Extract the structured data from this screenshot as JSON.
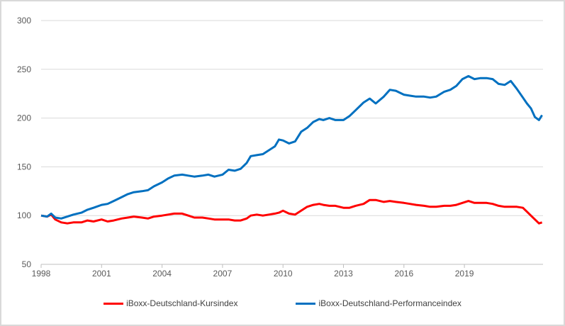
{
  "chart_data": {
    "type": "line",
    "title": "",
    "xlabel": "",
    "ylabel": "",
    "xlim": [
      1998,
      2022.9
    ],
    "ylim": [
      50,
      300
    ],
    "yticks": [
      50,
      100,
      150,
      200,
      250,
      300
    ],
    "xticks": [
      "1998",
      "2001",
      "2004",
      "2007",
      "2010",
      "2013",
      "2016",
      "2019"
    ],
    "grid": true,
    "legend": "bottom",
    "series": [
      {
        "name": "iBoxx-Deutschland-Kursindex",
        "color": "#ff0000",
        "x": [
          1998.0,
          1998.3,
          1998.5,
          1998.7,
          1999.0,
          1999.3,
          1999.6,
          2000.0,
          2000.3,
          2000.6,
          2001.0,
          2001.3,
          2001.6,
          2002.0,
          2002.3,
          2002.6,
          2003.0,
          2003.3,
          2003.6,
          2004.0,
          2004.3,
          2004.6,
          2005.0,
          2005.3,
          2005.6,
          2006.0,
          2006.3,
          2006.6,
          2007.0,
          2007.3,
          2007.6,
          2007.9,
          2008.2,
          2008.4,
          2008.7,
          2009.0,
          2009.3,
          2009.6,
          2009.8,
          2010.0,
          2010.3,
          2010.6,
          2010.9,
          2011.2,
          2011.5,
          2011.8,
          2012.0,
          2012.3,
          2012.6,
          2013.0,
          2013.3,
          2013.6,
          2014.0,
          2014.3,
          2014.6,
          2015.0,
          2015.3,
          2015.6,
          2016.0,
          2016.3,
          2016.6,
          2017.0,
          2017.3,
          2017.6,
          2018.0,
          2018.3,
          2018.6,
          2018.9,
          2019.2,
          2019.5,
          2019.8,
          2020.1,
          2020.4,
          2020.7,
          2021.0,
          2021.3,
          2021.6,
          2021.9,
          2022.1,
          2022.3,
          2022.5,
          2022.7,
          2022.85
        ],
        "values": [
          100,
          99,
          101,
          96,
          93,
          92,
          93,
          93,
          95,
          94,
          96,
          94,
          95,
          97,
          98,
          99,
          98,
          97,
          99,
          100,
          101,
          102,
          102,
          100,
          98,
          98,
          97,
          96,
          96,
          96,
          95,
          95,
          97,
          100,
          101,
          100,
          101,
          102,
          103,
          105,
          102,
          101,
          105,
          109,
          111,
          112,
          111,
          110,
          110,
          108,
          108,
          110,
          112,
          116,
          116,
          114,
          115,
          114,
          113,
          112,
          111,
          110,
          109,
          109,
          110,
          110,
          111,
          113,
          115,
          113,
          113,
          113,
          112,
          110,
          109,
          109,
          109,
          108,
          104,
          100,
          96,
          92,
          93
        ]
      },
      {
        "name": "iBoxx-Deutschland-Performanceindex",
        "color": "#0070c0",
        "x": [
          1998.0,
          1998.3,
          1998.5,
          1998.7,
          1999.0,
          1999.3,
          1999.6,
          2000.0,
          2000.3,
          2000.6,
          2001.0,
          2001.3,
          2001.6,
          2002.0,
          2002.3,
          2002.6,
          2003.0,
          2003.3,
          2003.6,
          2004.0,
          2004.3,
          2004.6,
          2005.0,
          2005.3,
          2005.6,
          2006.0,
          2006.3,
          2006.6,
          2007.0,
          2007.3,
          2007.6,
          2007.9,
          2008.2,
          2008.4,
          2008.7,
          2009.0,
          2009.3,
          2009.6,
          2009.8,
          2010.0,
          2010.3,
          2010.6,
          2010.9,
          2011.2,
          2011.5,
          2011.8,
          2012.0,
          2012.3,
          2012.6,
          2013.0,
          2013.3,
          2013.6,
          2014.0,
          2014.3,
          2014.6,
          2015.0,
          2015.3,
          2015.6,
          2016.0,
          2016.3,
          2016.6,
          2017.0,
          2017.3,
          2017.6,
          2018.0,
          2018.3,
          2018.6,
          2018.9,
          2019.2,
          2019.5,
          2019.8,
          2020.1,
          2020.4,
          2020.7,
          2021.0,
          2021.3,
          2021.6,
          2021.9,
          2022.1,
          2022.3,
          2022.5,
          2022.7,
          2022.85
        ],
        "values": [
          100,
          99,
          102,
          98,
          97,
          99,
          101,
          103,
          106,
          108,
          111,
          112,
          115,
          119,
          122,
          124,
          125,
          126,
          130,
          134,
          138,
          141,
          142,
          141,
          140,
          141,
          142,
          140,
          142,
          147,
          146,
          148,
          154,
          161,
          162,
          163,
          167,
          171,
          178,
          177,
          174,
          176,
          186,
          190,
          196,
          199,
          198,
          200,
          198,
          198,
          202,
          208,
          216,
          220,
          215,
          222,
          229,
          228,
          224,
          223,
          222,
          222,
          221,
          222,
          227,
          229,
          233,
          240,
          243,
          240,
          241,
          241,
          240,
          235,
          234,
          238,
          230,
          221,
          215,
          210,
          201,
          198,
          203
        ]
      }
    ]
  }
}
